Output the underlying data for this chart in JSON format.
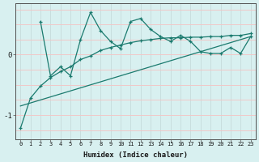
{
  "xlabel": "Humidex (Indice chaleur)",
  "background_color": "#d8f0f0",
  "grid_color_v": "#c8dede",
  "grid_color_h": "#f0c8c8",
  "line_color": "#1a7a6e",
  "curve1_x": [
    2,
    3,
    4,
    5,
    6,
    7,
    8,
    9,
    10,
    11,
    12,
    13,
    14,
    15,
    16,
    17,
    18,
    19,
    20,
    21,
    22,
    23
  ],
  "curve1_y": [
    0.55,
    -0.35,
    -0.2,
    -0.35,
    0.25,
    0.7,
    0.4,
    0.22,
    0.1,
    0.55,
    0.6,
    0.42,
    0.3,
    0.22,
    0.32,
    0.22,
    0.05,
    0.02,
    0.02,
    0.12,
    0.02,
    0.3
  ],
  "curve2_x": [
    0,
    1,
    2,
    3,
    4,
    5,
    6,
    7,
    8,
    9,
    10,
    11,
    12,
    13,
    14,
    15,
    16,
    17,
    18,
    19,
    20,
    21,
    22,
    23
  ],
  "curve2_y": [
    -1.22,
    -0.72,
    -0.52,
    -0.38,
    -0.28,
    -0.2,
    -0.08,
    -0.02,
    0.07,
    0.12,
    0.16,
    0.2,
    0.23,
    0.25,
    0.27,
    0.28,
    0.28,
    0.29,
    0.29,
    0.3,
    0.3,
    0.32,
    0.32,
    0.35
  ],
  "curve3_x": [
    0,
    23
  ],
  "curve3_y": [
    -0.85,
    0.3
  ],
  "ylim": [
    -1.4,
    0.85
  ],
  "yticks": [
    0,
    -1
  ],
  "ytick_labels": [
    "0",
    "-1"
  ],
  "xticks": [
    0,
    1,
    2,
    3,
    4,
    5,
    6,
    7,
    8,
    9,
    10,
    11,
    12,
    13,
    14,
    15,
    16,
    17,
    18,
    19,
    20,
    21,
    22,
    23
  ]
}
